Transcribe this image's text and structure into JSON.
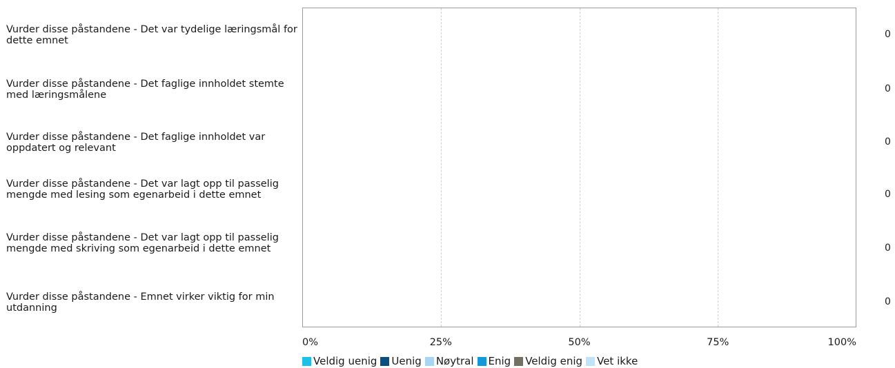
{
  "chart_data": {
    "type": "bar",
    "orientation": "horizontal",
    "stacked": true,
    "categories": [
      "Vurder disse påstandene  - Det var tydelige læringsmål for dette emnet",
      "Vurder disse påstandene  - Det faglige innholdet stemte med læringsmålene",
      "Vurder disse påstandene  - Det faglige innholdet var oppdatert og relevant",
      "Vurder disse påstandene  - Det var lagt opp til passelig mengde med lesing som egenarbeid i dette emnet",
      "Vurder disse påstandene  - Det var lagt opp til passelig mengde med skriving som egenarbeid i dette emnet",
      "Vurder disse påstandene  - Emnet virker viktig for min utdanning"
    ],
    "counts": [
      "0",
      "0",
      "0",
      "0",
      "0",
      "0"
    ],
    "x_ticks": [
      "0%",
      "25%",
      "50%",
      "75%",
      "100%"
    ],
    "xlim": [
      0,
      100
    ],
    "grid": "vertical dashed",
    "legend_position": "bottom",
    "series": [
      {
        "name": "Veldig uenig",
        "color": "#1ec0e8",
        "values": [
          0,
          0,
          0,
          0,
          0,
          0
        ]
      },
      {
        "name": "Uenig",
        "color": "#0b4f7e",
        "values": [
          0,
          0,
          0,
          0,
          0,
          0
        ]
      },
      {
        "name": "Nøytral",
        "color": "#a8d5f2",
        "values": [
          0,
          0,
          0,
          0,
          0,
          0
        ]
      },
      {
        "name": "Enig",
        "color": "#1598d8",
        "values": [
          0,
          0,
          0,
          0,
          0,
          0
        ]
      },
      {
        "name": "Veldig enig",
        "color": "#737062",
        "values": [
          0,
          0,
          0,
          0,
          0,
          0
        ]
      },
      {
        "name": "Vet ikke",
        "color": "#bfe3f7",
        "values": [
          0,
          0,
          0,
          0,
          0,
          0
        ]
      }
    ]
  }
}
